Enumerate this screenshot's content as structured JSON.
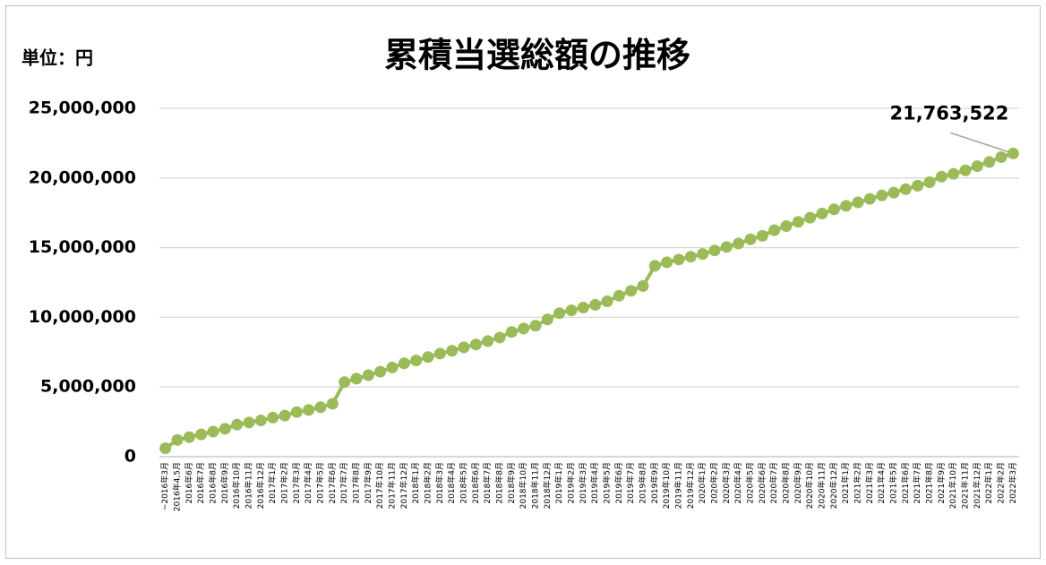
{
  "chart_data": {
    "type": "line",
    "title": "累積当選総額の推移",
    "y_label": "単位：円",
    "categories": [
      "~2016年3月",
      "2016年4,5月",
      "2016年6月",
      "2016年7月",
      "2016年8月",
      "2016年9月",
      "2016年10月",
      "2016年11月",
      "2016年12月",
      "2017年1月",
      "2017年2月",
      "2017年3月",
      "2017年4月",
      "2017年5月",
      "2017年6月",
      "2017年7月",
      "2017年8月",
      "2017年9月",
      "2017年10月",
      "2017年11月",
      "2017年12月",
      "2018年1月",
      "2018年2月",
      "2018年3月",
      "2018年4月",
      "2018年5月",
      "2018年6月",
      "2018年7月",
      "2018年8月",
      "2018年9月",
      "2018年10月",
      "2018年11月",
      "2018年12月",
      "2019年1月",
      "2019年2月",
      "2019年3月",
      "2019年4月",
      "2019年5月",
      "2019年6月",
      "2019年7月",
      "2019年8月",
      "2019年9月",
      "2019年10月",
      "2019年11月",
      "2019年12月",
      "2020年1月",
      "2020年2月",
      "2020年3月",
      "2020年4月",
      "2020年5月",
      "2020年6月",
      "2020年7月",
      "2020年8月",
      "2020年9月",
      "2020年10月",
      "2020年11月",
      "2020年12月",
      "2021年1月",
      "2021年2月",
      "2021年3月",
      "2021年4月",
      "2021年5月",
      "2021年6月",
      "2021年7月",
      "2021年8月",
      "2021年9月",
      "2021年10月",
      "2021年11月",
      "2021年12月",
      "2022年1月",
      "2022年2月",
      "2022年3月"
    ],
    "values": [
      600000,
      1200000,
      1400000,
      1600000,
      1800000,
      2000000,
      2300000,
      2450000,
      2600000,
      2800000,
      2950000,
      3200000,
      3350000,
      3550000,
      3800000,
      5350000,
      5600000,
      5850000,
      6100000,
      6400000,
      6700000,
      6900000,
      7150000,
      7400000,
      7600000,
      7850000,
      8050000,
      8300000,
      8550000,
      8950000,
      9200000,
      9400000,
      9850000,
      10300000,
      10500000,
      10700000,
      10900000,
      11150000,
      11550000,
      11900000,
      12250000,
      13700000,
      13950000,
      14150000,
      14350000,
      14550000,
      14800000,
      15050000,
      15300000,
      15600000,
      15850000,
      16250000,
      16550000,
      16850000,
      17150000,
      17450000,
      17750000,
      18000000,
      18250000,
      18500000,
      18750000,
      18950000,
      19200000,
      19450000,
      19700000,
      20100000,
      20300000,
      20550000,
      20850000,
      21150000,
      21500000,
      21763522
    ],
    "value_labels": [
      null,
      null,
      null,
      null,
      null,
      null,
      null,
      null,
      null,
      null,
      null,
      null,
      null,
      null,
      null,
      null,
      null,
      null,
      null,
      null,
      null,
      null,
      null,
      null,
      null,
      null,
      null,
      null,
      null,
      null,
      null,
      null,
      null,
      null,
      null,
      null,
      null,
      null,
      null,
      null,
      null,
      null,
      null,
      null,
      null,
      null,
      null,
      null,
      null,
      null,
      null,
      null,
      null,
      null,
      null,
      null,
      null,
      null,
      null,
      null,
      null,
      null,
      null,
      null,
      null,
      null,
      null,
      null,
      null,
      null,
      null,
      "21,763,522"
    ],
    "color": "#9bbb59",
    "ylim": [
      0,
      25000000
    ],
    "yticks": [
      0,
      {
        "value": 5000000,
        "label": "5,000,000"
      },
      {
        "value": 10000000,
        "label": "10,000,000"
      },
      {
        "value": 15000000,
        "label": "15,000,000"
      },
      {
        "value": 20000000,
        "label": "20,000,000"
      },
      {
        "value": 25000000,
        "label": "25,000,000"
      }
    ],
    "grid": true
  }
}
